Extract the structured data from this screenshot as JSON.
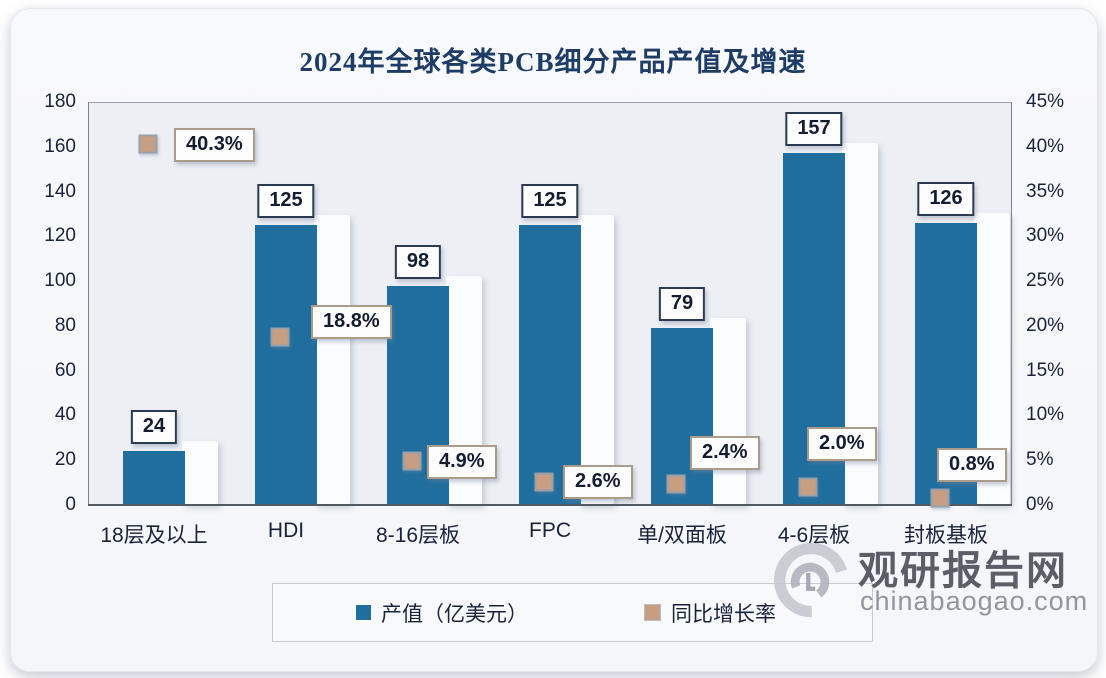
{
  "title": "2024年全球各类PCB细分产品产值及增速",
  "chart_data": {
    "type": "bar",
    "title": "2024年全球各类PCB细分产品产值及增速",
    "categories": [
      "18层及以上",
      "HDI",
      "8-16层板",
      "FPC",
      "单/双面板",
      "4-6层板",
      "封板基板"
    ],
    "series": [
      {
        "name": "产值（亿美元）",
        "type": "bar",
        "axis": "left",
        "values": [
          24,
          125,
          98,
          125,
          79,
          157,
          126
        ],
        "value_labels": [
          "24",
          "125",
          "98",
          "125",
          "79",
          "157",
          "126"
        ]
      },
      {
        "name": "同比增长率",
        "type": "point",
        "axis": "right",
        "values": [
          40.3,
          18.8,
          4.9,
          2.6,
          2.4,
          2.0,
          0.8
        ],
        "value_labels": [
          "40.3%",
          "18.8%",
          "4.9%",
          "2.6%",
          "2.4%",
          "2.0%",
          "0.8%"
        ]
      }
    ],
    "left_axis": {
      "min": 0,
      "max": 180,
      "step": 20,
      "tick_labels": [
        "0",
        "20",
        "40",
        "60",
        "80",
        "100",
        "120",
        "140",
        "160",
        "180"
      ]
    },
    "right_axis": {
      "min": 0,
      "max": 45,
      "step": 5,
      "tick_labels": [
        "0%",
        "5%",
        "10%",
        "15%",
        "20%",
        "25%",
        "30%",
        "35%",
        "40%",
        "45%"
      ]
    },
    "grid": false,
    "legend_position": "bottom",
    "pct_label_dx": [
      20,
      25,
      9,
      13,
      8,
      -7,
      -9
    ],
    "pct_label_dy": [
      1,
      -15,
      1,
      0,
      -31,
      -43,
      -33
    ]
  },
  "legend": {
    "bar_label": "产值（亿美元）",
    "growth_label": "同比增长率"
  },
  "watermark": {
    "site_name": "观研报告网",
    "site_domain": "chinabaogao.com"
  },
  "colors": {
    "bar": "#1f6e9e",
    "marker_fill": "#c89e82",
    "marker_border": "#98a0ab",
    "title_text": "#1d3c66",
    "axis_text": "#19223a",
    "value_box_border": "#2b3a4f",
    "pct_box_border": "#ab9b8b",
    "plot_background": "#edeff5"
  }
}
